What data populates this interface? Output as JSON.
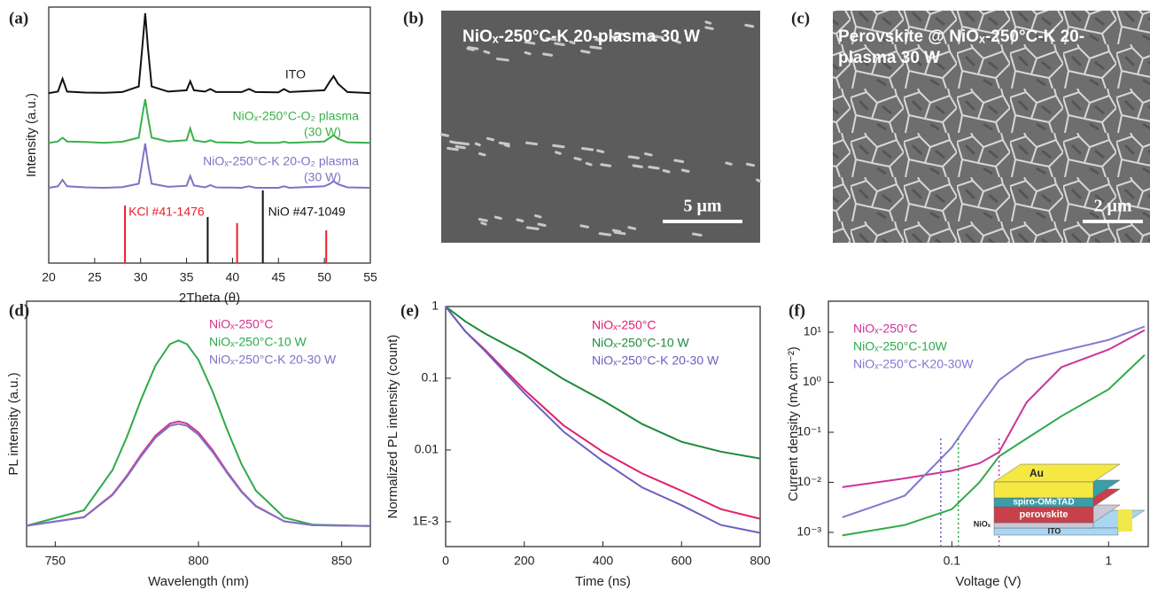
{
  "chart_data": [
    {
      "type": "line",
      "panel": "(a)",
      "xlabel": "2Theta (θ)",
      "ylabel": "Intensity (a.u.)",
      "xlim": [
        20,
        55
      ],
      "xticks": [
        20,
        25,
        30,
        35,
        40,
        45,
        50,
        55
      ],
      "ylim": [
        0,
        100
      ],
      "x": [
        20,
        21,
        21.5,
        22,
        24,
        26,
        28,
        29.8,
        30.2,
        30.5,
        30.8,
        31.2,
        33,
        35,
        35.4,
        35.8,
        37,
        37.6,
        38.2,
        41,
        41.8,
        42.5,
        45,
        45.6,
        46.2,
        50,
        50.6,
        51,
        51.5,
        52.5,
        55
      ],
      "series": [
        {
          "name": "ITO",
          "color": "#111111",
          "values": [
            66.4,
            67,
            72,
            67,
            66.6,
            66.5,
            66.8,
            69,
            85,
            97.6,
            84,
            69,
            67,
            67.5,
            71,
            67.5,
            67,
            68,
            66.8,
            66.8,
            68,
            66.8,
            66.7,
            68,
            66.8,
            67.5,
            71,
            73,
            70,
            66.8,
            66.4
          ]
        },
        {
          "name": "NiOₓ-250°C-O₂ plasma",
          "name_note": "(30 W)",
          "color": "#3cb04a",
          "values": [
            47,
            47.5,
            49,
            47.5,
            47.3,
            47,
            47.4,
            49,
            58,
            64,
            57,
            49,
            47.5,
            48,
            52.6,
            48,
            47.3,
            48,
            47.2,
            47,
            47.6,
            47,
            47,
            47.4,
            47,
            47.5,
            49,
            50,
            48.5,
            47.2,
            47
          ]
        },
        {
          "name": "NiOₓ-250°C-K 20-O₂ plasma",
          "name_note": "(30 W)",
          "color": "#7f72c6",
          "values": [
            29.4,
            30,
            32.5,
            30,
            29.6,
            29.4,
            29.7,
            31,
            40,
            46.7,
            39,
            31,
            29.8,
            30.2,
            34,
            30.3,
            29.6,
            30.5,
            29.6,
            29.4,
            30,
            29.4,
            29.4,
            30,
            29.4,
            30,
            31,
            32,
            30.8,
            29.6,
            29.4
          ]
        }
      ],
      "references": [
        {
          "name": "KCl #41-1476",
          "color": "#e8202a",
          "x": [
            28.3,
            40.5,
            50.2
          ],
          "values": [
            22.5,
            15.6,
            12.8
          ]
        },
        {
          "name": "NiO #47-1049",
          "color": "#111111",
          "x": [
            37.3,
            43.3
          ],
          "values": [
            18,
            28.4
          ]
        }
      ]
    },
    {
      "type": "line",
      "panel": "(d)",
      "xlabel": "Wavelength (nm)",
      "ylabel": "PL intensity (a.u.)",
      "xlim": [
        740,
        860
      ],
      "xticks": [
        750,
        800,
        850
      ],
      "ylim": [
        0,
        100
      ],
      "x": [
        740,
        760,
        770,
        775,
        780,
        785,
        790,
        793,
        796,
        800,
        805,
        810,
        815,
        820,
        830,
        840,
        860
      ],
      "series": [
        {
          "name": "NiOₓ-250°C",
          "color": "#d6338a",
          "values": [
            8.5,
            12.0,
            21.3,
            28.9,
            37.5,
            45.2,
            50.1,
            51.0,
            50.1,
            46.5,
            39.2,
            30.5,
            22.6,
            16.6,
            10.3,
            8.7,
            8.4
          ]
        },
        {
          "name": "NiOₓ-250°C-10 W",
          "color": "#2eaa4a",
          "values": [
            8.5,
            14.8,
            31.2,
            44.7,
            60.0,
            73.8,
            82.5,
            84.0,
            82.5,
            76.1,
            63.0,
            47.7,
            33.7,
            22.9,
            11.8,
            8.9,
            8.4
          ]
        },
        {
          "name": "NiOₓ-250°C-K 20-30 W",
          "color": "#7f72c6",
          "values": [
            8.5,
            11.9,
            21.0,
            28.4,
            36.8,
            44.4,
            49.2,
            50.0,
            49.2,
            45.6,
            38.4,
            30.0,
            22.3,
            16.4,
            10.3,
            8.7,
            8.4
          ]
        }
      ]
    },
    {
      "type": "line",
      "panel": "(e)",
      "xlabel": "Time (ns)",
      "ylabel": "Normalized PL intensity (count)",
      "xlim": [
        0,
        800
      ],
      "xticks": [
        0,
        200,
        400,
        600,
        800
      ],
      "ylog": true,
      "ylim": [
        0.00045,
        1
      ],
      "yticks": [
        {
          "value": 0.001,
          "label": "1E-3"
        },
        0.01,
        0.1,
        1
      ],
      "x": [
        0,
        50,
        100,
        200,
        300,
        400,
        500,
        600,
        700,
        800
      ],
      "series": [
        {
          "name": "NiOₓ-250°C",
          "color": "#e0206e",
          "values": [
            1,
            0.45,
            0.25,
            0.069,
            0.022,
            0.0094,
            0.0047,
            0.0027,
            0.0015,
            0.0011
          ]
        },
        {
          "name": "NiOₓ-250°C-10 W",
          "color": "#1f8a3a",
          "values": [
            1,
            0.62,
            0.42,
            0.215,
            0.097,
            0.049,
            0.023,
            0.013,
            0.0095,
            0.0076
          ]
        },
        {
          "name": "NiOₓ-250°C-K 20-30 W",
          "color": "#6a5fc0",
          "values": [
            1,
            0.45,
            0.24,
            0.062,
            0.018,
            0.007,
            0.003,
            0.0017,
            0.0009,
            0.0007
          ]
        }
      ]
    },
    {
      "type": "line",
      "panel": "(f)",
      "xlabel": "Voltage (V)",
      "ylabel": "Current density (mA cm⁻²)",
      "xlog": true,
      "xlim": [
        0.0163,
        1.79
      ],
      "xticks": [
        0.1,
        1
      ],
      "ylog": true,
      "ylim": [
        0.00052,
        41.6
      ],
      "yticks": [
        {
          "value": 0.001,
          "label": "10⁻³"
        },
        {
          "value": 0.01,
          "label": "10⁻²"
        },
        {
          "value": 0.1,
          "label": "10⁻¹"
        },
        {
          "value": 1,
          "label": "10⁰"
        },
        {
          "value": 10,
          "label": "10¹"
        }
      ],
      "x": [
        0.02,
        0.05,
        0.1,
        0.15,
        0.2,
        0.3,
        0.5,
        1,
        1.7
      ],
      "series": [
        {
          "name": "NiOₓ-250°C",
          "color": "#cc3399",
          "values": [
            0.008,
            0.012,
            0.017,
            0.024,
            0.04,
            0.4,
            2.0,
            4.5,
            11
          ]
        },
        {
          "name": "NiOₓ-250°C-10W",
          "color": "#2eaa4a",
          "values": [
            0.00087,
            0.0014,
            0.0029,
            0.01,
            0.033,
            0.075,
            0.21,
            0.72,
            3.5
          ]
        },
        {
          "name": "NiOₓ-250°C-K20-30W",
          "color": "#7f79d0",
          "values": [
            0.002,
            0.0054,
            0.05,
            0.32,
            1.1,
            2.8,
            4.2,
            7,
            13
          ]
        }
      ],
      "markers": [
        {
          "x": 0.085,
          "color": "#5a5ad0"
        },
        {
          "x": 0.11,
          "color": "#2eaa4a"
        },
        {
          "x": 0.2,
          "color": "#cc3399"
        }
      ],
      "inset_labels": [
        "Au",
        "spiro-OMeTAD",
        "perovskite",
        "NiOₓ",
        "ITO"
      ]
    }
  ],
  "images": [
    {
      "panel": "(b)",
      "label": [
        "NiOₓ-250°C-K 20-plasma 30 W"
      ],
      "scale_bar": "5 μm"
    },
    {
      "panel": "(c)",
      "label": [
        "Perovskite @ NiOₓ-250°C-K 20-",
        "plasma 30 W"
      ],
      "scale_bar": "2 μm"
    }
  ]
}
